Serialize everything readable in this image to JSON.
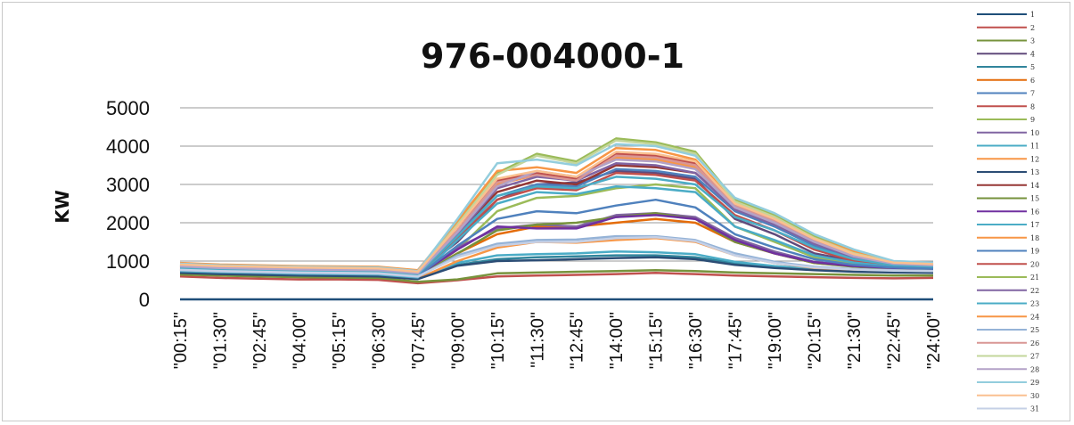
{
  "chart_data": {
    "type": "line",
    "title": "976-004000-1",
    "ylabel": "KW",
    "xlabel": "",
    "ylim": [
      0,
      5000
    ],
    "yticks": [
      "0",
      "1000",
      "2000",
      "3000",
      "4000",
      "5000"
    ],
    "grid": true,
    "legend_position": "right",
    "x_tick_labels": [
      "\"00:15\"",
      "\"01:30\"",
      "\"02:45\"",
      "\"04:00\"",
      "\"05:15\"",
      "\"06:30\"",
      "\"07:45\"",
      "\"09:00\"",
      "\"10:15\"",
      "\"11:30\"",
      "\"12:45\"",
      "\"14:00\"",
      "\"15:15\"",
      "\"16:30\"",
      "\"17:45\"",
      "\"19:00\"",
      "\"20:15\"",
      "\"21:30\"",
      "\"22:45\"",
      "\"24:00\""
    ],
    "series": [
      {
        "name": "1",
        "color": "#1f4e79",
        "values": [
          0,
          0,
          0,
          0,
          0,
          0,
          0,
          0,
          0,
          0,
          0,
          0,
          0,
          0,
          0,
          0,
          0,
          0,
          0,
          0
        ]
      },
      {
        "name": "2",
        "color": "#c0504d",
        "values": [
          600,
          560,
          540,
          520,
          520,
          510,
          420,
          500,
          600,
          620,
          640,
          660,
          690,
          660,
          620,
          600,
          580,
          560,
          550,
          560
        ]
      },
      {
        "name": "3",
        "color": "#77933c",
        "values": [
          650,
          620,
          600,
          580,
          570,
          560,
          460,
          520,
          680,
          700,
          720,
          740,
          760,
          740,
          700,
          680,
          660,
          640,
          620,
          620
        ]
      },
      {
        "name": "4",
        "color": "#604a7b",
        "values": [
          900,
          860,
          820,
          800,
          790,
          780,
          700,
          1500,
          2600,
          3000,
          3050,
          3350,
          3300,
          3150,
          2100,
          1700,
          1200,
          1000,
          900,
          880
        ]
      },
      {
        "name": "5",
        "color": "#31859c",
        "values": [
          700,
          680,
          660,
          640,
          630,
          620,
          540,
          900,
          1050,
          1100,
          1120,
          1150,
          1150,
          1100,
          950,
          850,
          780,
          740,
          720,
          700
        ]
      },
      {
        "name": "6",
        "color": "#e46c0a",
        "values": [
          800,
          760,
          740,
          720,
          710,
          700,
          620,
          1200,
          1700,
          1900,
          1900,
          2000,
          2100,
          2000,
          1500,
          1200,
          950,
          860,
          820,
          800
        ]
      },
      {
        "name": "7",
        "color": "#4f81bd",
        "values": [
          850,
          810,
          790,
          770,
          760,
          750,
          660,
          1700,
          2700,
          3000,
          2950,
          3400,
          3350,
          3200,
          2300,
          1900,
          1400,
          1050,
          900,
          870
        ]
      },
      {
        "name": "8",
        "color": "#c0504d",
        "values": [
          820,
          790,
          770,
          750,
          740,
          730,
          640,
          1600,
          2600,
          2900,
          2850,
          3300,
          3250,
          3100,
          2200,
          1800,
          1300,
          1000,
          880,
          850
        ]
      },
      {
        "name": "9",
        "color": "#9bbb59",
        "values": [
          750,
          720,
          700,
          680,
          670,
          660,
          580,
          1300,
          2300,
          2650,
          2700,
          2900,
          3000,
          2900,
          1900,
          1500,
          1100,
          920,
          820,
          800
        ]
      },
      {
        "name": "10",
        "color": "#8064a2",
        "values": [
          780,
          750,
          730,
          710,
          700,
          690,
          610,
          1350,
          1850,
          1950,
          1900,
          2200,
          2250,
          2150,
          1600,
          1250,
          980,
          880,
          820,
          800
        ]
      },
      {
        "name": "11",
        "color": "#4bacc6",
        "values": [
          720,
          690,
          670,
          650,
          640,
          630,
          560,
          950,
          1150,
          1180,
          1200,
          1250,
          1230,
          1180,
          980,
          870,
          800,
          760,
          730,
          720
        ]
      },
      {
        "name": "12",
        "color": "#f79646",
        "values": [
          700,
          670,
          650,
          630,
          620,
          610,
          540,
          1000,
          1350,
          1500,
          1480,
          1550,
          1600,
          1500,
          1150,
          950,
          820,
          760,
          720,
          700
        ]
      },
      {
        "name": "13",
        "color": "#2c4d75",
        "values": [
          690,
          660,
          640,
          620,
          610,
          600,
          530,
          880,
          1000,
          1020,
          1050,
          1080,
          1100,
          1050,
          900,
          820,
          760,
          720,
          700,
          690
        ]
      },
      {
        "name": "14",
        "color": "#953735",
        "values": [
          880,
          840,
          820,
          800,
          790,
          780,
          690,
          1750,
          2800,
          3100,
          3000,
          3500,
          3450,
          3300,
          2400,
          2000,
          1500,
          1100,
          920,
          890
        ]
      },
      {
        "name": "15",
        "color": "#76923c",
        "values": [
          760,
          730,
          710,
          690,
          680,
          670,
          590,
          1200,
          1800,
          1950,
          2000,
          2150,
          2250,
          2100,
          1500,
          1200,
          950,
          850,
          800,
          780
        ]
      },
      {
        "name": "16",
        "color": "#7030a0",
        "values": [
          800,
          770,
          750,
          730,
          720,
          710,
          630,
          1300,
          1900,
          1850,
          1850,
          2150,
          2200,
          2100,
          1550,
          1200,
          970,
          870,
          820,
          800
        ]
      },
      {
        "name": "17",
        "color": "#4bacc6",
        "values": [
          740,
          710,
          690,
          670,
          660,
          650,
          570,
          1550,
          2500,
          2800,
          2750,
          2950,
          2900,
          2800,
          1900,
          1550,
          1150,
          960,
          850,
          820
        ]
      },
      {
        "name": "18",
        "color": "#f79646",
        "values": [
          860,
          820,
          800,
          780,
          770,
          760,
          680,
          1800,
          3000,
          3250,
          3150,
          3700,
          3650,
          3450,
          2450,
          2050,
          1550,
          1150,
          940,
          900
        ]
      },
      {
        "name": "19",
        "color": "#4f81bd",
        "values": [
          780,
          750,
          730,
          710,
          700,
          690,
          610,
          1400,
          2100,
          2300,
          2250,
          2450,
          2600,
          2400,
          1700,
          1350,
          1050,
          900,
          830,
          800
        ]
      },
      {
        "name": "20",
        "color": "#c0504d",
        "values": [
          900,
          860,
          840,
          820,
          810,
          800,
          710,
          1900,
          3100,
          3300,
          3150,
          3800,
          3750,
          3550,
          2500,
          2100,
          1600,
          1200,
          960,
          920
        ]
      },
      {
        "name": "21",
        "color": "#9bbb59",
        "values": [
          920,
          880,
          860,
          840,
          830,
          820,
          730,
          2000,
          3300,
          3800,
          3600,
          4200,
          4100,
          3850,
          2600,
          2200,
          1650,
          1250,
          980,
          940
        ]
      },
      {
        "name": "22",
        "color": "#8064a2",
        "values": [
          840,
          800,
          780,
          760,
          750,
          740,
          660,
          1700,
          2900,
          3200,
          3100,
          3550,
          3500,
          3300,
          2350,
          1950,
          1450,
          1100,
          920,
          880
        ]
      },
      {
        "name": "23",
        "color": "#4bacc6",
        "values": [
          820,
          790,
          770,
          750,
          740,
          730,
          650,
          1650,
          2700,
          2950,
          2900,
          3200,
          3150,
          3000,
          2150,
          1800,
          1350,
          1050,
          900,
          860
        ]
      },
      {
        "name": "24",
        "color": "#f79646",
        "values": [
          950,
          910,
          890,
          870,
          860,
          850,
          760,
          2050,
          3350,
          3450,
          3300,
          3950,
          3900,
          3650,
          2550,
          2150,
          1600,
          1250,
          990,
          950
        ]
      },
      {
        "name": "25",
        "color": "#95b3d7",
        "values": [
          760,
          730,
          710,
          690,
          680,
          670,
          590,
          1150,
          1450,
          1550,
          1560,
          1650,
          1650,
          1550,
          1200,
          980,
          850,
          790,
          760,
          740
        ]
      },
      {
        "name": "26",
        "color": "#d99694",
        "values": [
          880,
          840,
          820,
          800,
          790,
          780,
          690,
          1800,
          3050,
          3250,
          3100,
          3750,
          3700,
          3500,
          2450,
          2050,
          1550,
          1150,
          950,
          900
        ]
      },
      {
        "name": "27",
        "color": "#c3d69b",
        "values": [
          900,
          860,
          840,
          820,
          810,
          800,
          710,
          1950,
          3250,
          3750,
          3550,
          4150,
          4050,
          3800,
          2550,
          2150,
          1600,
          1200,
          970,
          920
        ]
      },
      {
        "name": "28",
        "color": "#b3a2c7",
        "values": [
          860,
          820,
          800,
          780,
          770,
          760,
          680,
          1750,
          2950,
          3350,
          3200,
          3650,
          3600,
          3400,
          2400,
          2000,
          1500,
          1120,
          930,
          890
        ]
      },
      {
        "name": "29",
        "color": "#93cddd",
        "values": [
          930,
          890,
          870,
          850,
          840,
          830,
          740,
          2100,
          3550,
          3650,
          3500,
          4050,
          4000,
          3750,
          2650,
          2250,
          1700,
          1300,
          1000,
          960
        ]
      },
      {
        "name": "30",
        "color": "#fac090",
        "values": [
          910,
          870,
          850,
          830,
          820,
          810,
          720,
          1900,
          3150,
          3350,
          3200,
          3850,
          3800,
          3600,
          2500,
          2100,
          1580,
          1180,
          960,
          920
        ]
      },
      {
        "name": "31",
        "color": "#c5d0e6",
        "values": [
          770,
          740,
          720,
          700,
          690,
          680,
          600,
          1100,
          1400,
          1500,
          1500,
          1600,
          1620,
          1520,
          1150,
          950,
          830,
          780,
          750,
          740
        ]
      }
    ]
  }
}
